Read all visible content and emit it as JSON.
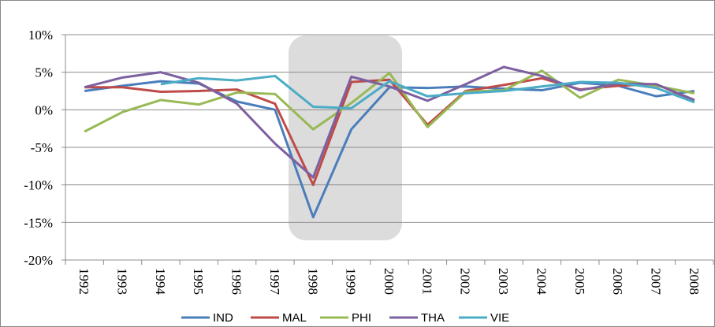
{
  "chart_data": {
    "type": "line",
    "categories": [
      "1992",
      "1993",
      "1994",
      "1995",
      "1996",
      "1997",
      "1998",
      "1999",
      "2000",
      "2001",
      "2002",
      "2003",
      "2004",
      "2005",
      "2006",
      "2007",
      "2008"
    ],
    "series": [
      {
        "name": "IND",
        "color": "#4a7ebb",
        "values": [
          2.5,
          3.2,
          3.8,
          3.5,
          1.1,
          0,
          -14.3,
          -2.6,
          3.0,
          2.9,
          3.1,
          2.8,
          2.6,
          3.6,
          3.2,
          1.8,
          2.5
        ]
      },
      {
        "name": "MAL",
        "color": "#be4b48",
        "values": [
          3.0,
          3.0,
          2.4,
          2.5,
          2.7,
          0.8,
          -10.0,
          3.7,
          4.0,
          -2.0,
          2.5,
          3.3,
          4.2,
          2.7,
          3.2,
          3.4,
          1.2
        ]
      },
      {
        "name": "PHI",
        "color": "#98b954",
        "values": [
          -2.9,
          -0.3,
          1.3,
          0.7,
          2.3,
          2.1,
          -2.6,
          0.9,
          4.9,
          -2.3,
          2.4,
          2.6,
          5.2,
          1.6,
          4.0,
          3.2,
          2.2
        ]
      },
      {
        "name": "THA",
        "color": "#7d60a0",
        "values": [
          3.0,
          4.3,
          5.0,
          3.6,
          0.8,
          -4.5,
          -9.0,
          4.4,
          3.1,
          1.2,
          3.4,
          5.7,
          4.5,
          2.6,
          3.5,
          3.4,
          1.3
        ]
      },
      {
        "name": "VIE",
        "color": "#4bacc6",
        "values": [
          null,
          null,
          3.4,
          4.2,
          3.9,
          4.5,
          0.4,
          0.2,
          3.8,
          1.8,
          2.2,
          2.5,
          3.1,
          3.7,
          3.6,
          2.9,
          1.0
        ]
      }
    ],
    "ylim": [
      -20,
      10
    ],
    "yticks": [
      {
        "value": -20,
        "label": "-20%"
      },
      {
        "value": -15,
        "label": "-15%"
      },
      {
        "value": -10,
        "label": "-10%"
      },
      {
        "value": -5,
        "label": "-5%"
      },
      {
        "value": 0,
        "label": "0%"
      },
      {
        "value": 5,
        "label": "5%"
      },
      {
        "value": 10,
        "label": "10%"
      }
    ],
    "grid": true,
    "legend": "bottom"
  }
}
